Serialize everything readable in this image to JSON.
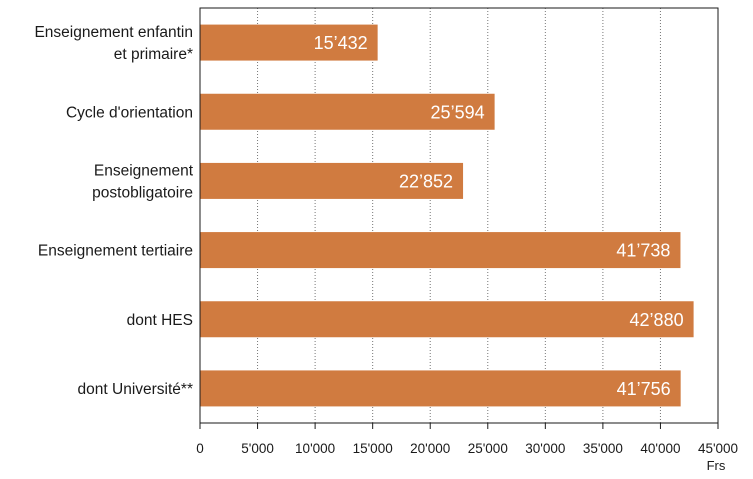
{
  "chart_data": {
    "type": "bar",
    "orientation": "horizontal",
    "categories": [
      [
        "Enseignement enfantin",
        "et primaire*"
      ],
      [
        "Cycle d'orientation"
      ],
      [
        "Enseignement",
        "postobligatoire"
      ],
      [
        "Enseignement tertiaire"
      ],
      [
        "dont HES"
      ],
      [
        "dont Université**"
      ]
    ],
    "values": [
      15432,
      25594,
      22852,
      41738,
      42880,
      41756
    ],
    "value_labels": [
      "15’432",
      "25’594",
      "22’852",
      "41’738",
      "42’880",
      "41’756"
    ],
    "xlim": [
      0,
      45000
    ],
    "xticks": [
      0,
      5000,
      10000,
      15000,
      20000,
      25000,
      30000,
      35000,
      40000,
      45000
    ],
    "xtick_labels": [
      "0",
      "5'000",
      "10'000",
      "15'000",
      "20'000",
      "25'000",
      "30'000",
      "35'000",
      "40'000",
      "45'000"
    ],
    "xlabel": "Frs",
    "title": "",
    "grid": "vertical-dotted",
    "bar_color": "#d07b40"
  }
}
